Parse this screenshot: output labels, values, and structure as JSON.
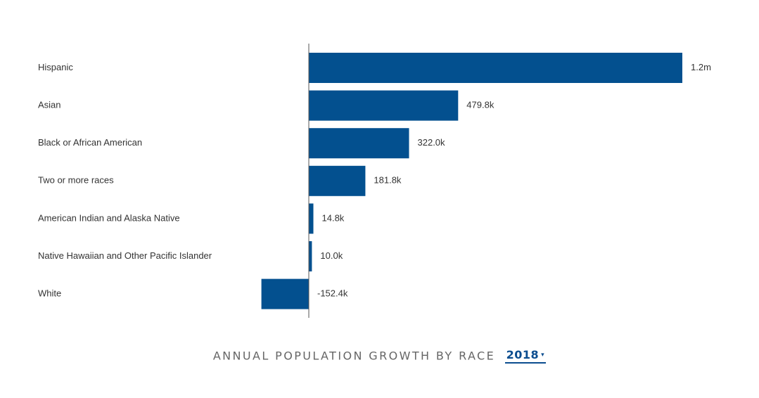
{
  "chart_data": {
    "type": "bar",
    "orientation": "horizontal",
    "title": "ANNUAL POPULATION GROWTH BY RACE",
    "categories": [
      "Hispanic",
      "Asian",
      "Black or African American",
      "Two or more races",
      "American Indian and Alaska Native",
      "Native Hawaiian and Other Pacific Islander",
      "White"
    ],
    "values": [
      1200000,
      479800,
      322000,
      181800,
      14800,
      10000,
      -152400
    ],
    "value_labels": [
      "1.2m",
      "479.8k",
      "322.0k",
      "181.8k",
      "14.8k",
      "10.0k",
      "-152.4k"
    ],
    "xlim": [
      -152400,
      1200000
    ],
    "grid": false,
    "bar_color": "#03508f"
  },
  "year_selector": {
    "selected": "2018",
    "caret": "▾"
  },
  "colors": {
    "bar": "#03508f",
    "axis": "#555555",
    "accent": "#0b4d8f"
  }
}
